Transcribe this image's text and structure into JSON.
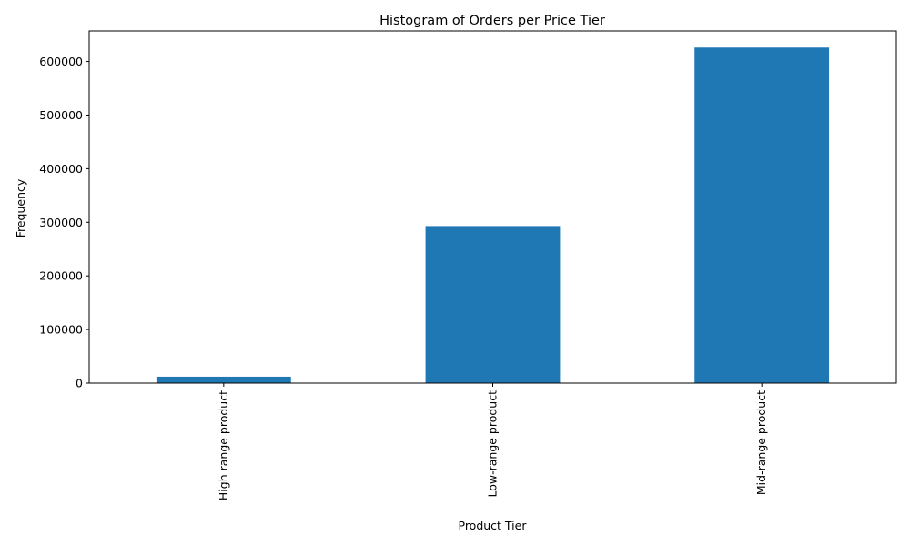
{
  "chart_data": {
    "type": "bar",
    "title": "Histogram of Orders per Price Tier",
    "xlabel": "Product Tier",
    "ylabel": "Frequency",
    "categories": [
      "High range product",
      "Low-range product",
      "Mid-range product"
    ],
    "values": [
      12000,
      293000,
      626000
    ],
    "ylim": [
      0,
      657000
    ],
    "yticks": [
      0,
      100000,
      200000,
      300000,
      400000,
      500000,
      600000
    ],
    "ytick_labels": [
      "0",
      "100000",
      "200000",
      "300000",
      "400000",
      "500000",
      "600000"
    ],
    "bar_color": "#1f77b4",
    "grid": false,
    "legend": "none"
  }
}
